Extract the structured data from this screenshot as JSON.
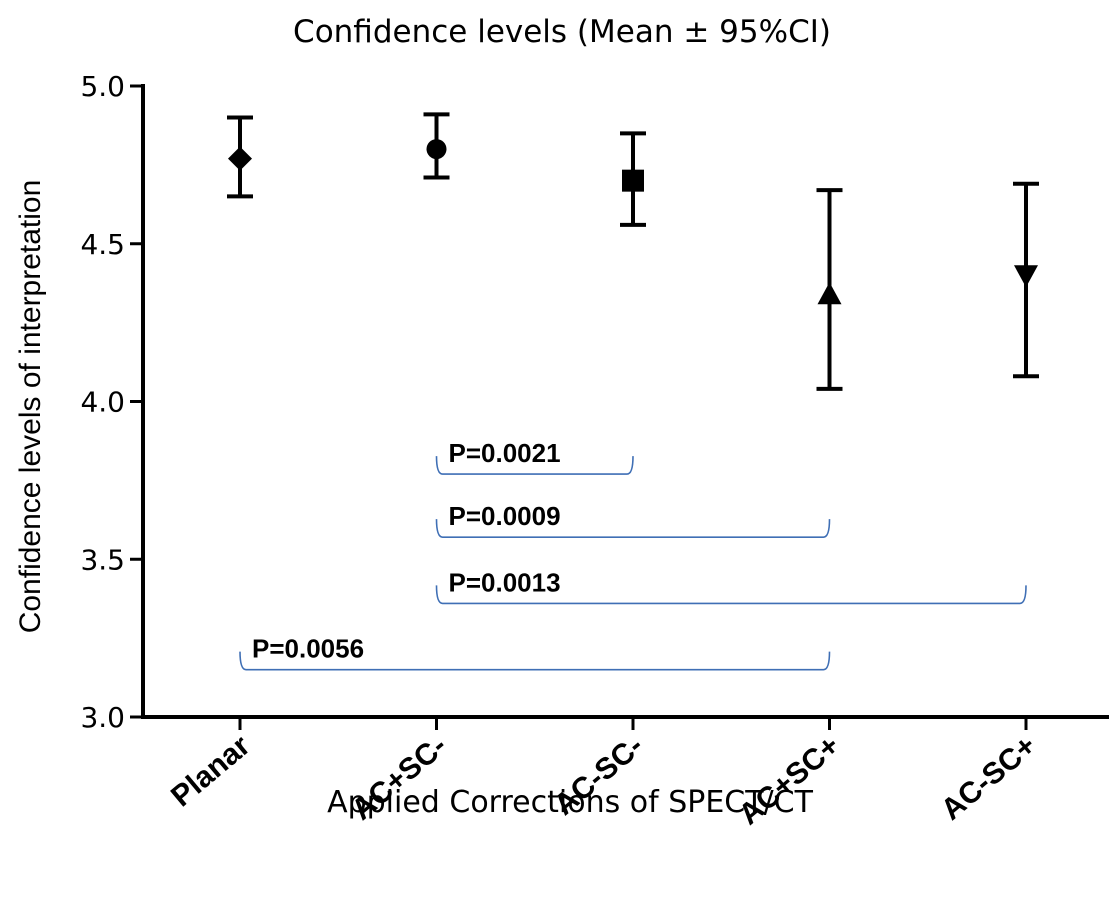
{
  "chart_data": {
    "type": "scatter",
    "title": "Confidence levels (Mean ± 95%CI)",
    "xlabel": "Applied Corrections of SPECT/CT",
    "ylabel": "Confidence levels of interpretation",
    "ylim": [
      3.0,
      5.0
    ],
    "yticks": [
      "3.0",
      "3.5",
      "4.0",
      "4.5",
      "5.0"
    ],
    "categories": [
      "Planar",
      "AC+SC-",
      "AC-SC-",
      "AC+SC+",
      "AC-SC+"
    ],
    "series": [
      {
        "category": "Planar",
        "mean": 4.77,
        "ci_low": 4.65,
        "ci_high": 4.9,
        "marker": "diamond"
      },
      {
        "category": "AC+SC-",
        "mean": 4.8,
        "ci_low": 4.71,
        "ci_high": 4.91,
        "marker": "circle"
      },
      {
        "category": "AC-SC-",
        "mean": 4.7,
        "ci_low": 4.56,
        "ci_high": 4.85,
        "marker": "square"
      },
      {
        "category": "AC+SC+",
        "mean": 4.34,
        "ci_low": 4.04,
        "ci_high": 4.67,
        "marker": "triangle-up"
      },
      {
        "category": "AC-SC+",
        "mean": 4.4,
        "ci_low": 4.08,
        "ci_high": 4.69,
        "marker": "triangle-down"
      }
    ],
    "comparisons": [
      {
        "from": "AC+SC-",
        "to": "AC-SC-",
        "label": "P=0.0021",
        "y": 3.77
      },
      {
        "from": "AC+SC-",
        "to": "AC+SC+",
        "label": "P=0.0009",
        "y": 3.57
      },
      {
        "from": "AC+SC-",
        "to": "AC-SC+",
        "label": "P=0.0013",
        "y": 3.36
      },
      {
        "from": "Planar",
        "to": "AC+SC+",
        "label": "P=0.0056",
        "y": 3.15
      }
    ],
    "colors": {
      "data": "#000000",
      "bracket": "#3f6fb5"
    },
    "grid": false,
    "legend": "none"
  }
}
